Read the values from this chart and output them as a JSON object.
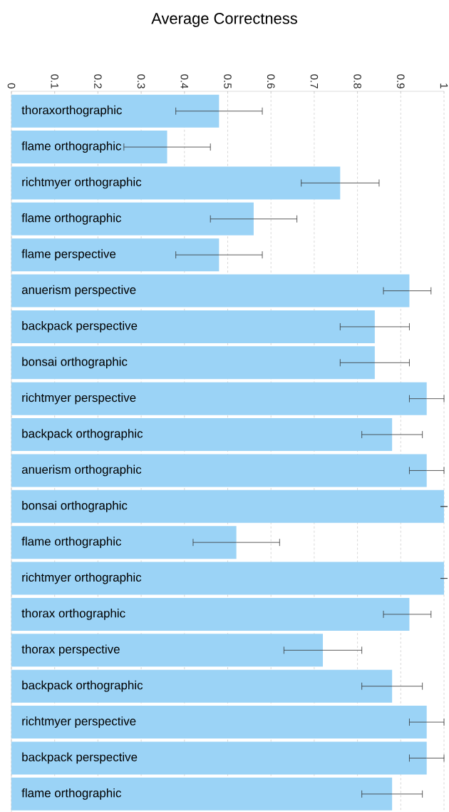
{
  "chart_data": {
    "type": "bar",
    "orientation": "horizontal",
    "title": "Average Correctness",
    "categories": [
      "thoraxorthographic",
      "flame orthographic",
      "richtmyer orthographic",
      "flame orthographic",
      "flame perspective",
      "anuerism perspective",
      "backpack perspective",
      "bonsai orthographic",
      "richtmyer perspective",
      "backpack orthographic",
      "anuerism orthographic",
      "bonsai orthographic",
      "flame orthographic",
      "richtmyer orthographic",
      "thorax orthographic",
      "thorax perspective",
      "backpack orthographic",
      "richtmyer perspective",
      "backpack perspective",
      "flame orthographic"
    ],
    "values": [
      0.48,
      0.36,
      0.76,
      0.56,
      0.48,
      0.92,
      0.84,
      0.84,
      0.96,
      0.88,
      0.96,
      1.0,
      0.52,
      1.0,
      0.92,
      0.72,
      0.88,
      0.96,
      0.96,
      0.88
    ],
    "errors": [
      [
        0.38,
        0.58
      ],
      [
        0.26,
        0.46
      ],
      [
        0.67,
        0.85
      ],
      [
        0.46,
        0.66
      ],
      [
        0.38,
        0.58
      ],
      [
        0.86,
        0.97
      ],
      [
        0.76,
        0.92
      ],
      [
        0.76,
        0.92
      ],
      [
        0.92,
        1.0
      ],
      [
        0.81,
        0.95
      ],
      [
        0.92,
        1.0
      ],
      0,
      [
        0.42,
        0.62
      ],
      0,
      [
        0.86,
        0.97
      ],
      [
        0.63,
        0.81
      ],
      [
        0.81,
        0.95
      ],
      [
        0.92,
        1.0
      ],
      [
        0.92,
        1.0
      ],
      [
        0.81,
        0.95
      ]
    ],
    "color": "#9bd3f6",
    "xlim": [
      0,
      1
    ],
    "xticks": [
      0,
      0.1,
      0.2,
      0.3,
      0.4,
      0.5,
      0.6,
      0.7,
      0.8,
      0.9,
      1
    ],
    "grid": "x"
  }
}
